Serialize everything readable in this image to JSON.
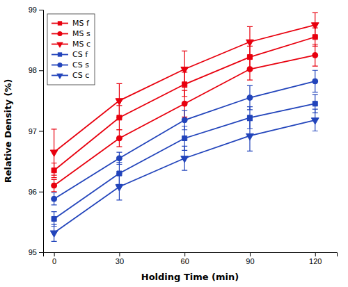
{
  "chart_data": {
    "type": "line",
    "xlabel": "Holding Time (min)",
    "ylabel": "Relative Density (%)",
    "x": [
      0,
      30,
      60,
      90,
      120
    ],
    "series": [
      {
        "name": "MS f",
        "color": "#e8000e",
        "marker": "square",
        "values": [
          96.35,
          97.22,
          97.77,
          98.22,
          98.55
        ],
        "errors": [
          0.12,
          0.2,
          0.2,
          0.18,
          0.15
        ]
      },
      {
        "name": "MS s",
        "color": "#e8000e",
        "marker": "circle",
        "values": [
          96.1,
          96.88,
          97.45,
          98.02,
          98.25
        ],
        "errors": [
          0.1,
          0.14,
          0.22,
          0.18,
          0.18
        ]
      },
      {
        "name": "MS c",
        "color": "#e8000e",
        "marker": "triangle-down",
        "values": [
          96.65,
          97.5,
          98.02,
          98.47,
          98.75
        ],
        "errors": [
          0.38,
          0.28,
          0.3,
          0.25,
          0.2
        ]
      },
      {
        "name": "CS f",
        "color": "#2244bb",
        "marker": "square",
        "values": [
          95.55,
          96.3,
          96.88,
          97.22,
          97.45
        ],
        "errors": [
          0.12,
          0.18,
          0.2,
          0.18,
          0.15
        ]
      },
      {
        "name": "CS s",
        "color": "#2244bb",
        "marker": "circle",
        "values": [
          95.88,
          96.55,
          97.18,
          97.55,
          97.82
        ],
        "errors": [
          0.1,
          0.1,
          0.16,
          0.2,
          0.18
        ]
      },
      {
        "name": "CS c",
        "color": "#2244bb",
        "marker": "triangle-down",
        "values": [
          95.32,
          96.08,
          96.55,
          96.92,
          97.18
        ],
        "errors": [
          0.14,
          0.22,
          0.2,
          0.25,
          0.18
        ]
      }
    ],
    "xlim": [
      -5,
      130
    ],
    "ylim": [
      95.0,
      99.0
    ],
    "xticks": [
      0,
      30,
      60,
      90,
      120
    ],
    "yticks": [
      95,
      96,
      97,
      98,
      99
    ],
    "legend": "upper left",
    "grid": false
  }
}
